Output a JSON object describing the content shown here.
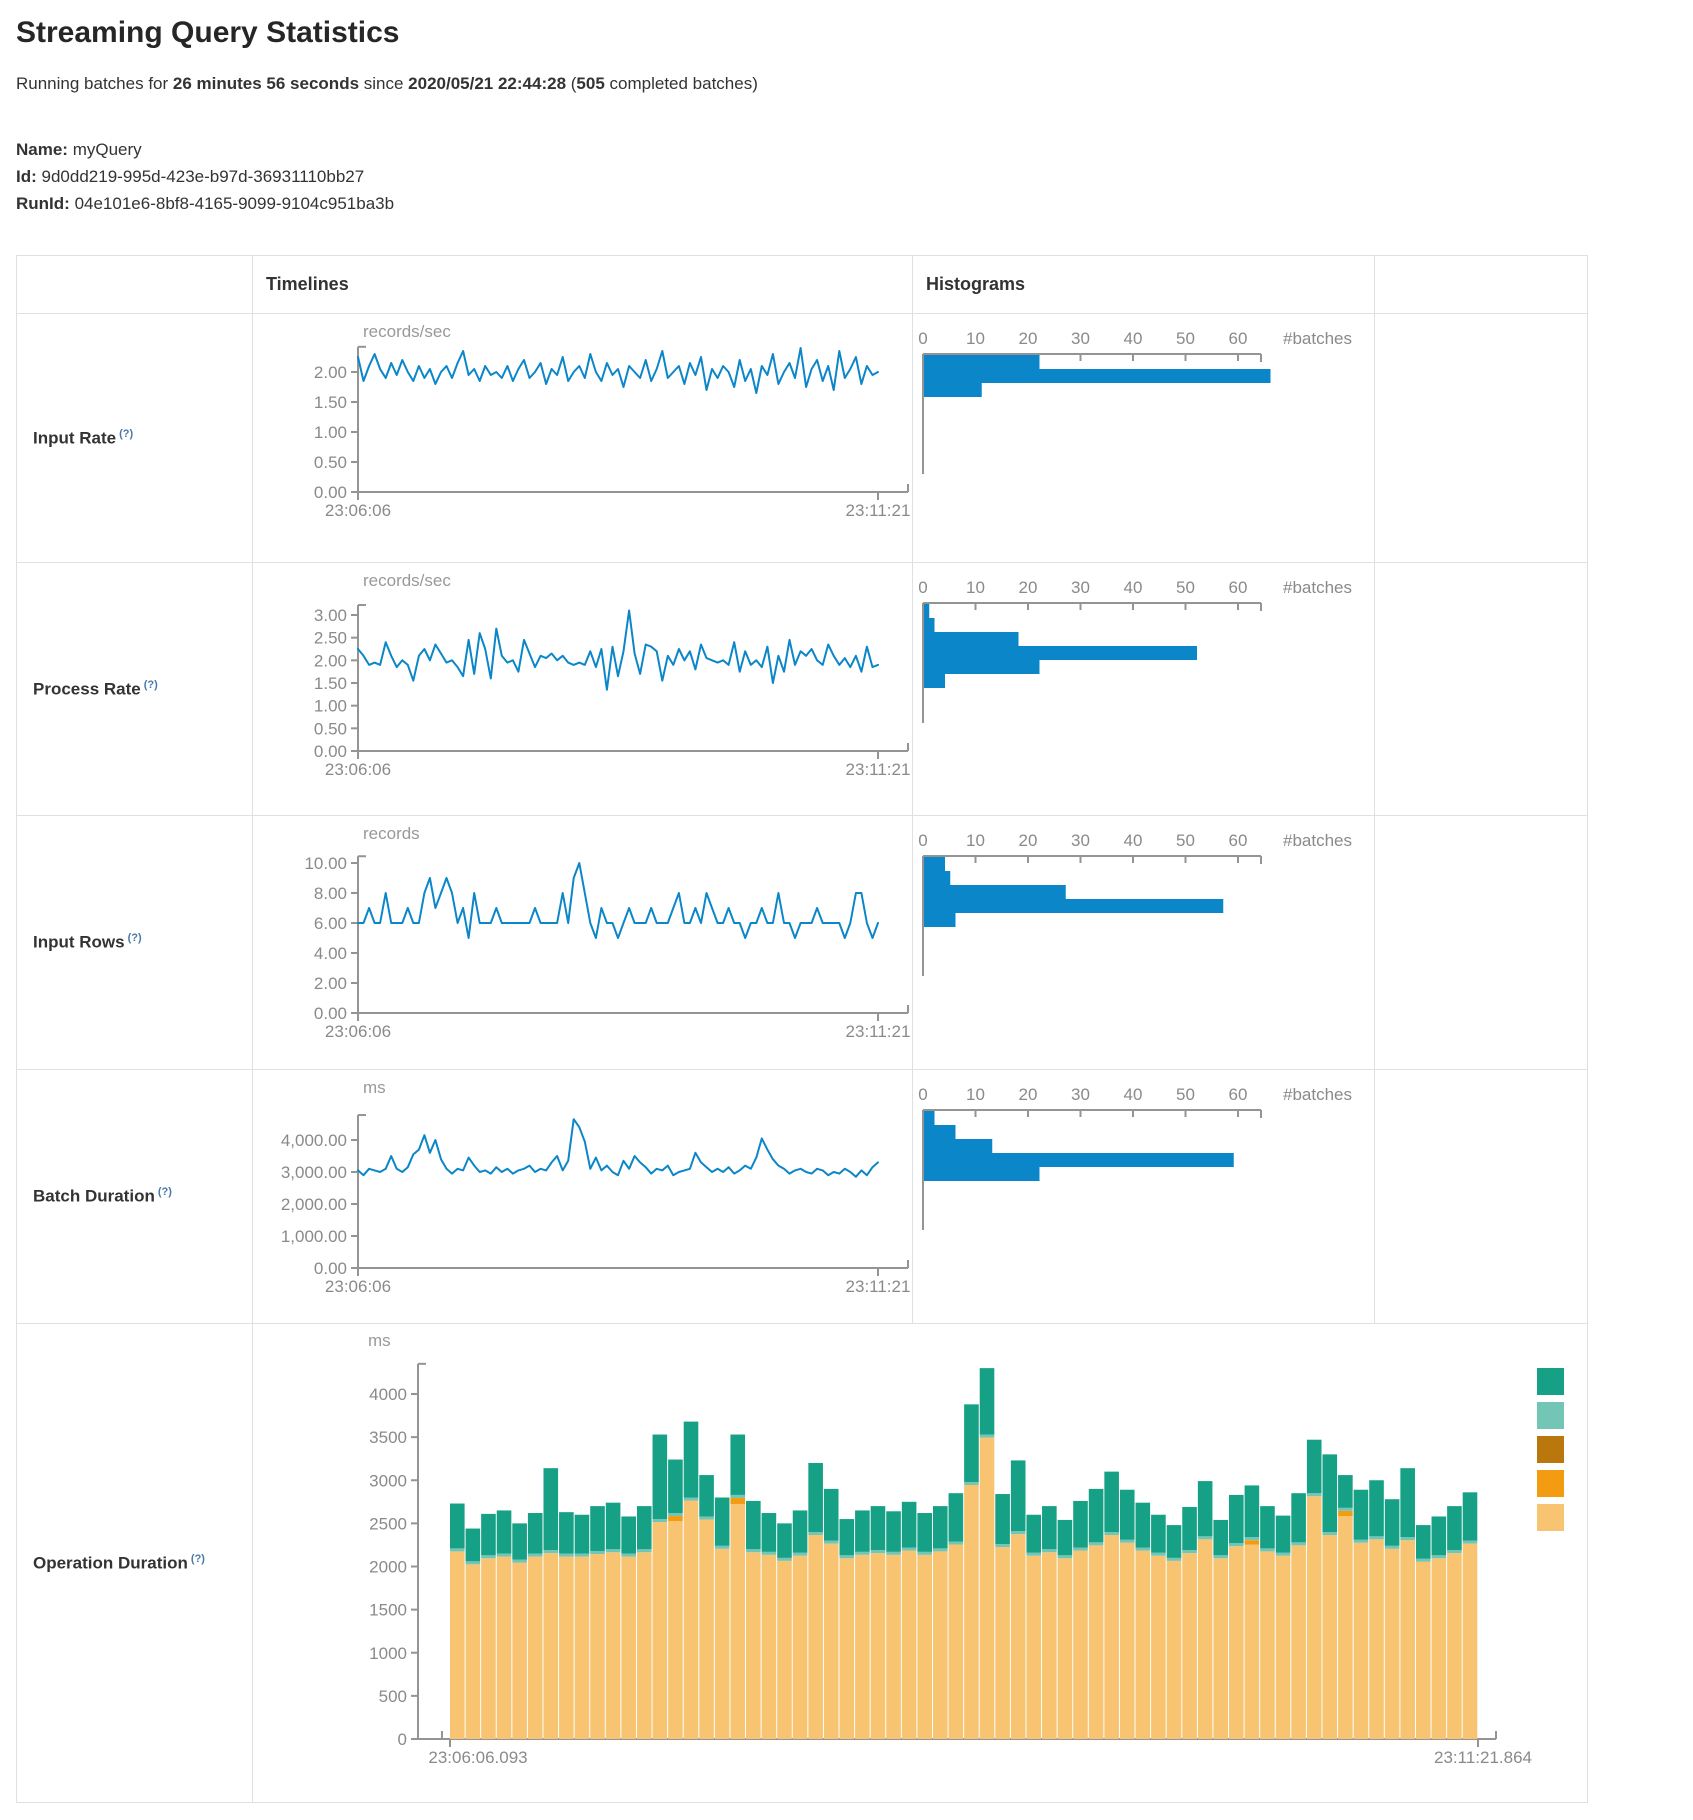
{
  "page": {
    "title": "Streaming Query Statistics",
    "subtitle_parts": [
      {
        "t": "Running batches for "
      },
      {
        "t": "26 minutes 56 seconds"
      },
      {
        "t": " since "
      },
      {
        "t": "2020/05/21 22:44:28"
      },
      {
        "t": " ("
      },
      {
        "t": "505"
      },
      {
        "t": " completed batches)"
      }
    ],
    "fields": [
      {
        "label": "Name:",
        "value": "myQuery"
      },
      {
        "label": "Id:",
        "value": "9d0dd219-995d-423e-b97d-36931110bb27"
      },
      {
        "label": "RunId:",
        "value": "04e101e6-8bf8-4165-9099-9104c951ba3b"
      }
    ]
  },
  "table": {
    "headers": {
      "timelines": "Timelines",
      "histograms": "Histograms"
    }
  },
  "colors": {
    "line_blue": "#0b86c9",
    "hist_blue": "#0b86c9",
    "axis": "#949494",
    "tick_text": "#8a8a8a",
    "unit_text": "#999999",
    "border": "#e0e0e0",
    "teal": "#16A085",
    "light_teal": "#73C6B6",
    "ochre": "#B9770E",
    "orange": "#F39C12",
    "tan": "#F8C471"
  },
  "chart_data": [
    {
      "id": "input-rate",
      "row_label": "Input Rate",
      "help": "(?)",
      "type": "line",
      "timeline": {
        "unit": "records/sec",
        "x_start": "23:06:06",
        "x_end": "23:11:21",
        "y_axis_max": 2.42,
        "y_ticks": [
          {
            "v": 2,
            "label": "2.00"
          },
          {
            "v": 1.5,
            "label": "1.50"
          },
          {
            "v": 1,
            "label": "1.00"
          },
          {
            "v": 0.5,
            "label": "0.50"
          },
          {
            "v": 0,
            "label": "0.00"
          }
        ],
        "values": [
          2.25,
          1.85,
          2.1,
          2.3,
          2.05,
          1.9,
          2.15,
          1.95,
          2.2,
          2.0,
          1.85,
          2.1,
          1.9,
          2.05,
          1.8,
          2.0,
          2.1,
          1.9,
          2.15,
          2.35,
          1.95,
          2.05,
          1.85,
          2.1,
          1.95,
          2.0,
          1.9,
          2.1,
          1.85,
          2.05,
          2.2,
          1.9,
          2.0,
          2.15,
          1.8,
          2.05,
          1.95,
          2.25,
          1.85,
          2.0,
          2.1,
          1.9,
          2.3,
          2.0,
          1.85,
          2.15,
          1.95,
          2.05,
          1.75,
          2.1,
          2.0,
          1.9,
          2.2,
          1.85,
          2.05,
          2.35,
          1.9,
          2.0,
          2.1,
          1.8,
          2.15,
          1.95,
          2.25,
          1.7,
          2.05,
          1.9,
          2.1,
          2.0,
          1.75,
          2.2,
          1.85,
          2.05,
          1.65,
          2.1,
          1.95,
          2.3,
          1.8,
          2.0,
          2.15,
          1.9,
          2.4,
          1.75,
          2.05,
          2.2,
          1.85,
          2.1,
          1.7,
          2.35,
          1.9,
          2.05,
          2.25,
          1.8,
          2.1,
          1.95,
          2.0
        ]
      },
      "histogram": {
        "type": "bar",
        "tick_labels": [
          "0",
          "10",
          "20",
          "30",
          "40",
          "50",
          "60"
        ],
        "axis_label": "#batches",
        "values": [
          22,
          66,
          11
        ]
      }
    },
    {
      "id": "process-rate",
      "row_label": "Process Rate",
      "help": "(?)",
      "type": "line",
      "timeline": {
        "unit": "records/sec",
        "x_start": "23:06:06",
        "x_end": "23:11:21",
        "y_axis_max": 3.22,
        "y_ticks": [
          {
            "v": 3,
            "label": "3.00"
          },
          {
            "v": 2.5,
            "label": "2.50"
          },
          {
            "v": 2,
            "label": "2.00"
          },
          {
            "v": 1.5,
            "label": "1.50"
          },
          {
            "v": 1,
            "label": "1.00"
          },
          {
            "v": 0.5,
            "label": "0.50"
          },
          {
            "v": 0,
            "label": "0.00"
          }
        ],
        "values": [
          2.25,
          2.1,
          1.9,
          1.95,
          1.9,
          2.4,
          2.1,
          1.85,
          2.0,
          1.9,
          1.55,
          2.1,
          2.25,
          2.0,
          2.35,
          2.15,
          1.95,
          2.0,
          1.85,
          1.65,
          2.45,
          1.7,
          2.6,
          2.25,
          1.6,
          2.7,
          2.1,
          1.95,
          2.0,
          1.75,
          2.45,
          2.15,
          1.85,
          2.1,
          2.05,
          2.15,
          2.0,
          2.1,
          1.95,
          1.9,
          1.95,
          1.9,
          2.2,
          1.85,
          2.25,
          1.35,
          2.3,
          1.65,
          2.2,
          3.1,
          2.15,
          1.7,
          2.35,
          2.3,
          2.2,
          1.55,
          2.1,
          1.9,
          2.25,
          2.0,
          2.2,
          1.8,
          2.35,
          2.05,
          2.0,
          1.95,
          2.0,
          1.9,
          2.4,
          1.75,
          2.2,
          1.9,
          2.0,
          1.85,
          2.3,
          1.5,
          2.1,
          1.75,
          2.45,
          1.9,
          2.2,
          2.1,
          2.25,
          2.0,
          1.9,
          2.35,
          2.1,
          1.9,
          2.05,
          1.85,
          2.1,
          1.75,
          2.3,
          1.85,
          1.9
        ]
      },
      "histogram": {
        "type": "bar",
        "tick_labels": [
          "0",
          "10",
          "20",
          "30",
          "40",
          "50",
          "60"
        ],
        "axis_label": "#batches",
        "values": [
          1,
          2,
          18,
          52,
          22,
          4
        ]
      }
    },
    {
      "id": "input-rows",
      "row_label": "Input Rows",
      "help": "(?)",
      "type": "line",
      "timeline": {
        "unit": "records",
        "x_start": "23:06:06",
        "x_end": "23:11:21",
        "y_axis_max": 10.45,
        "y_ticks": [
          {
            "v": 10,
            "label": "10.00"
          },
          {
            "v": 8,
            "label": "8.00"
          },
          {
            "v": 6,
            "label": "6.00"
          },
          {
            "v": 4,
            "label": "4.00"
          },
          {
            "v": 2,
            "label": "2.00"
          },
          {
            "v": 0,
            "label": "0.00"
          }
        ],
        "values": [
          6,
          6,
          7,
          6,
          6,
          8,
          6,
          6,
          6,
          7,
          6,
          6,
          8,
          9,
          7,
          8,
          9,
          8,
          6,
          7,
          5,
          8,
          6,
          6,
          6,
          7,
          6,
          6,
          6,
          6,
          6,
          6,
          7,
          6,
          6,
          6,
          6,
          8,
          6,
          9,
          10,
          8,
          6,
          5,
          7,
          6,
          6,
          5,
          6,
          7,
          6,
          6,
          6,
          7,
          6,
          6,
          6,
          7,
          8,
          6,
          6,
          7,
          6,
          8,
          7,
          6,
          6,
          7,
          6,
          6,
          5,
          6,
          6,
          7,
          6,
          6,
          8,
          6,
          6,
          5,
          6,
          6,
          6,
          7,
          6,
          6,
          6,
          6,
          5,
          6,
          8,
          8,
          6,
          5,
          6
        ]
      },
      "histogram": {
        "type": "bar",
        "tick_labels": [
          "0",
          "10",
          "20",
          "30",
          "40",
          "50",
          "60"
        ],
        "axis_label": "#batches",
        "values": [
          4,
          5,
          27,
          57,
          6
        ]
      }
    },
    {
      "id": "batch-duration",
      "row_label": "Batch Duration",
      "help": "(?)",
      "type": "line",
      "timeline": {
        "unit": "ms",
        "x_start": "23:06:06",
        "x_end": "23:11:21",
        "y_axis_max": 4780,
        "y_ticks": [
          {
            "v": 4000,
            "label": "4,000.00"
          },
          {
            "v": 3000,
            "label": "3,000.00"
          },
          {
            "v": 2000,
            "label": "2,000.00"
          },
          {
            "v": 1000,
            "label": "1,000.00"
          },
          {
            "v": 0,
            "label": "0.00"
          }
        ],
        "values": [
          3050,
          2900,
          3100,
          3050,
          3000,
          3100,
          3500,
          3100,
          3000,
          3150,
          3550,
          3700,
          4150,
          3600,
          4000,
          3400,
          3100,
          2950,
          3100,
          3050,
          3450,
          3200,
          3000,
          3050,
          2950,
          3150,
          3000,
          3100,
          2950,
          3050,
          3100,
          3200,
          3000,
          3100,
          3050,
          3300,
          3500,
          3050,
          3350,
          4650,
          4400,
          3950,
          3100,
          3450,
          3050,
          3200,
          3000,
          2900,
          3350,
          3100,
          3500,
          3300,
          3150,
          2950,
          3100,
          3050,
          3200,
          2900,
          3000,
          3050,
          3100,
          3600,
          3300,
          3150,
          3000,
          3100,
          3000,
          3150,
          2950,
          3050,
          3200,
          3100,
          3450,
          4050,
          3700,
          3400,
          3200,
          3100,
          2950,
          3050,
          3100,
          3000,
          2950,
          3100,
          3050,
          2900,
          3000,
          2950,
          3100,
          3000,
          2850,
          3050,
          2900,
          3150,
          3300
        ]
      },
      "histogram": {
        "type": "bar",
        "tick_labels": [
          "0",
          "10",
          "20",
          "30",
          "40",
          "50",
          "60"
        ],
        "axis_label": "#batches",
        "values": [
          2,
          6,
          13,
          59,
          22
        ]
      }
    },
    {
      "id": "operation-duration",
      "row_label": "Operation Duration",
      "help": "(?)",
      "type": "stacked-bar",
      "timeline": {
        "unit": "ms",
        "x_start": "23:06:06.093",
        "x_end": "23:11:21.864",
        "y_axis_max": 4350,
        "y_ticks": [
          {
            "v": 4000,
            "label": "4000"
          },
          {
            "v": 3500,
            "label": "3500"
          },
          {
            "v": 3000,
            "label": "3000"
          },
          {
            "v": 2500,
            "label": "2500"
          },
          {
            "v": 2000,
            "label": "2000"
          },
          {
            "v": 1500,
            "label": "1500"
          },
          {
            "v": 1000,
            "label": "1000"
          },
          {
            "v": 500,
            "label": "500"
          },
          {
            "v": 0,
            "label": "0"
          }
        ],
        "series": [
          {
            "key": "tan",
            "values": [
              2175,
              2025,
              2095,
              2115,
              2045,
              2115,
              2155,
              2115,
              2115,
              2145,
              2165,
              2115,
              2165,
              2515,
              2525,
              2765,
              2545,
              2205,
              2725,
              2165,
              2135,
              2065,
              2125,
              2365,
              2265,
              2095,
              2135,
              2155,
              2135,
              2185,
              2135,
              2175,
              2255,
              2945,
              3495,
              2225,
              2375,
              2125,
              2165,
              2095,
              2185,
              2245,
              2365,
              2275,
              2185,
              2125,
              2065,
              2155,
              2315,
              2095,
              2235,
              2255,
              2175,
              2125,
              2245,
              2815,
              2365,
              2585,
              2275,
              2315,
              2205,
              2305,
              2055,
              2095,
              2155,
              2265
            ]
          },
          {
            "key": "orange",
            "values": [
              0,
              0,
              0,
              0,
              0,
              0,
              0,
              0,
              0,
              0,
              0,
              0,
              0,
              0,
              60,
              0,
              0,
              0,
              70,
              0,
              0,
              0,
              0,
              0,
              0,
              0,
              0,
              0,
              0,
              0,
              0,
              0,
              0,
              0,
              0,
              0,
              0,
              0,
              0,
              0,
              0,
              0,
              0,
              0,
              0,
              0,
              0,
              0,
              0,
              0,
              0,
              50,
              0,
              0,
              0,
              0,
              0,
              60,
              0,
              0,
              0,
              0,
              0,
              0,
              0,
              0
            ]
          },
          {
            "key": "light_teal",
            "values": 35
          },
          {
            "key": "teal",
            "values": [
              520,
              380,
              480,
              500,
              420,
              470,
              950,
              480,
              450,
              520,
              540,
              430,
              500,
              980,
              620,
              880,
              480,
              560,
              700,
              560,
              450,
              400,
              490,
              800,
              600,
              420,
              480,
              510,
              470,
              530,
              450,
              490,
              560,
              900,
              770,
              580,
              820,
              440,
              500,
              410,
              540,
              620,
              700,
              580,
              520,
              440,
              380,
              500,
              640,
              410,
              560,
              600,
              490,
              430,
              570,
              620,
              900,
              380,
              580,
              650,
              540,
              800,
              390,
              450,
              510,
              560
            ]
          }
        ]
      },
      "legend": {
        "colors": [
          "#16A085",
          "#73C6B6",
          "#B9770E",
          "#F39C12",
          "#F8C471"
        ]
      }
    }
  ]
}
